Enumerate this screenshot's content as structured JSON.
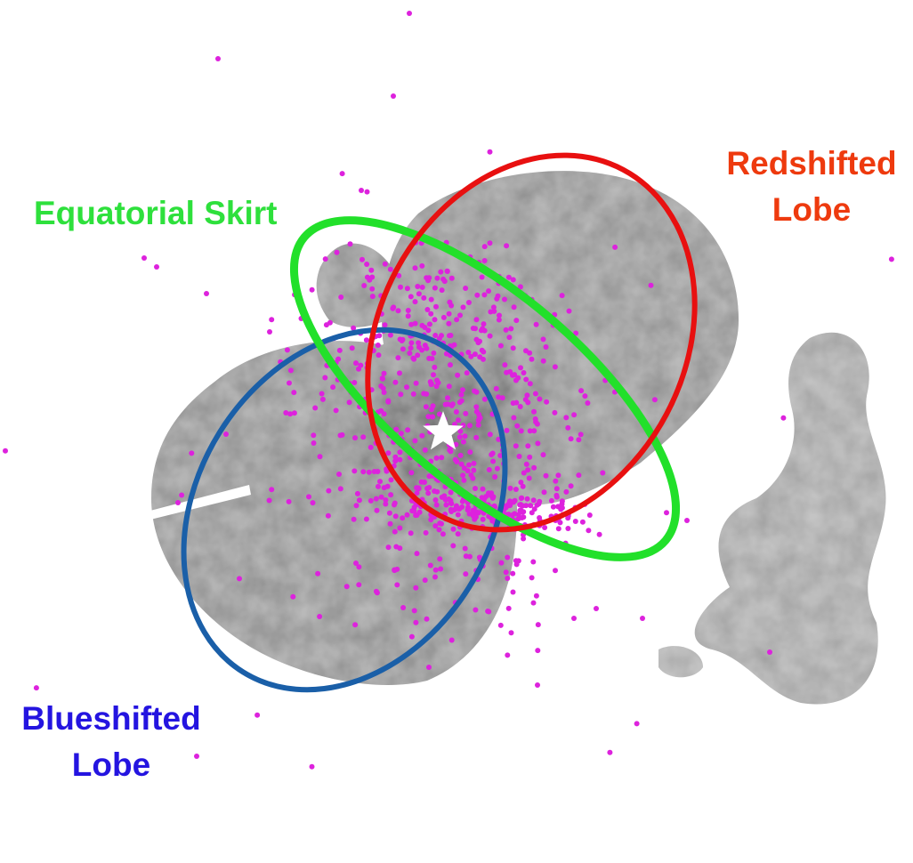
{
  "labels": [
    {
      "lines": [
        "Equatorial Skirt"
      ]
    },
    {
      "lines": [
        "Redshifted",
        "Lobe"
      ]
    },
    {
      "lines": [
        "Blueshifted",
        "Lobe"
      ]
    }
  ]
}
